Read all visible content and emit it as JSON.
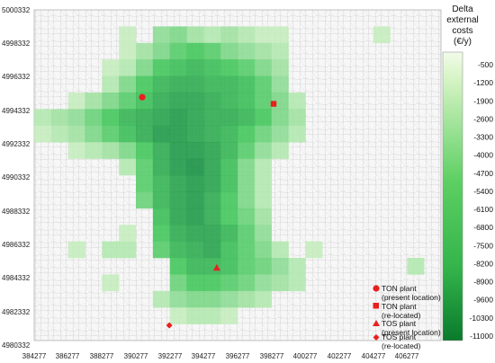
{
  "map": {
    "x_ticks": [
      "384277",
      "386277",
      "388277",
      "390277",
      "392277",
      "394277",
      "396277",
      "398277",
      "400277",
      "402277",
      "404277",
      "406277"
    ],
    "y_ticks": [
      "5000332",
      "4998332",
      "4996332",
      "4994332",
      "4992332",
      "4990332",
      "4988332",
      "4986332",
      "4984332",
      "4982332",
      "4980332"
    ],
    "x_range": [
      384277,
      408277
    ],
    "y_range": [
      4980332,
      5000332
    ]
  },
  "colorbar": {
    "title_lines": [
      "Delta",
      "external",
      "costs",
      "(€/y)"
    ],
    "labels": [
      "-500",
      "-1200",
      "-1900",
      "-2600",
      "-3300",
      "-4000",
      "-4700",
      "-5400",
      "-6100",
      "-6800",
      "-7500",
      "-8200",
      "-8900",
      "-9600",
      "-10300",
      "-11000"
    ],
    "color_top": "#f2fbe9",
    "color_mid": "#33c24a",
    "color_bottom": "#0a7a2c"
  },
  "legend": {
    "items": [
      {
        "marker": "circle",
        "lines": [
          "TON plant",
          "(present location)"
        ]
      },
      {
        "marker": "square",
        "lines": [
          "TON plant",
          "(re-located)"
        ]
      },
      {
        "marker": "triangle",
        "lines": [
          "TOS plant",
          "(present location)"
        ]
      },
      {
        "marker": "diamond",
        "lines": [
          "TOS plant",
          "(re-located)"
        ]
      }
    ],
    "marker_color": "#e8201e"
  },
  "plants": [
    {
      "marker": "circle",
      "x": 390650,
      "y": 4995050
    },
    {
      "marker": "square",
      "x": 398400,
      "y": 4994650
    },
    {
      "marker": "triangle",
      "x": 395050,
      "y": 4984750
    },
    {
      "marker": "diamond",
      "x": 392250,
      "y": 4981250
    }
  ],
  "heat_cells": [
    [
      391277,
      4998332,
      5
    ],
    [
      392277,
      4998332,
      6
    ],
    [
      393277,
      4998332,
      4
    ],
    [
      394277,
      4998332,
      3
    ],
    [
      395277,
      4998332,
      4
    ],
    [
      396277,
      4998332,
      3
    ],
    [
      397277,
      4998332,
      2
    ],
    [
      398277,
      4998332,
      2
    ],
    [
      389277,
      4998332,
      2
    ],
    [
      390277,
      4997332,
      4
    ],
    [
      391277,
      4997332,
      6
    ],
    [
      392277,
      4997332,
      8
    ],
    [
      393277,
      4997332,
      9
    ],
    [
      394277,
      4997332,
      8
    ],
    [
      395277,
      4997332,
      6
    ],
    [
      396277,
      4997332,
      5
    ],
    [
      397277,
      4997332,
      4
    ],
    [
      398277,
      4997332,
      3
    ],
    [
      389277,
      4997332,
      2
    ],
    [
      389277,
      4996332,
      3
    ],
    [
      390277,
      4996332,
      6
    ],
    [
      391277,
      4996332,
      9
    ],
    [
      392277,
      4996332,
      10
    ],
    [
      393277,
      4996332,
      11
    ],
    [
      394277,
      4996332,
      10
    ],
    [
      395277,
      4996332,
      9
    ],
    [
      396277,
      4996332,
      8
    ],
    [
      397277,
      4996332,
      6
    ],
    [
      398277,
      4996332,
      4
    ],
    [
      388277,
      4996332,
      2
    ],
    [
      388277,
      4995332,
      3
    ],
    [
      389277,
      4995332,
      6
    ],
    [
      390277,
      4995332,
      9
    ],
    [
      391277,
      4995332,
      11
    ],
    [
      392277,
      4995332,
      12
    ],
    [
      393277,
      4995332,
      12
    ],
    [
      394277,
      4995332,
      11
    ],
    [
      395277,
      4995332,
      11
    ],
    [
      396277,
      4995332,
      10
    ],
    [
      397277,
      4995332,
      8
    ],
    [
      398277,
      4995332,
      5
    ],
    [
      386277,
      4994332,
      2
    ],
    [
      387277,
      4994332,
      4
    ],
    [
      388277,
      4994332,
      6
    ],
    [
      389277,
      4994332,
      8
    ],
    [
      390277,
      4994332,
      10
    ],
    [
      391277,
      4994332,
      12
    ],
    [
      392277,
      4994332,
      13
    ],
    [
      393277,
      4994332,
      13
    ],
    [
      394277,
      4994332,
      12
    ],
    [
      395277,
      4994332,
      11
    ],
    [
      396277,
      4994332,
      10
    ],
    [
      397277,
      4994332,
      8
    ],
    [
      398277,
      4994332,
      6
    ],
    [
      399277,
      4994332,
      3
    ],
    [
      384277,
      4993332,
      3
    ],
    [
      385277,
      4993332,
      4
    ],
    [
      386277,
      4993332,
      5
    ],
    [
      387277,
      4993332,
      7
    ],
    [
      388277,
      4993332,
      9
    ],
    [
      389277,
      4993332,
      11
    ],
    [
      390277,
      4993332,
      12
    ],
    [
      391277,
      4993332,
      13
    ],
    [
      392277,
      4993332,
      14
    ],
    [
      393277,
      4993332,
      13
    ],
    [
      394277,
      4993332,
      12
    ],
    [
      395277,
      4993332,
      12
    ],
    [
      396277,
      4993332,
      11
    ],
    [
      397277,
      4993332,
      9
    ],
    [
      398277,
      4993332,
      6
    ],
    [
      399277,
      4993332,
      4
    ],
    [
      384277,
      4992332,
      2
    ],
    [
      385277,
      4992332,
      3
    ],
    [
      386277,
      4992332,
      4
    ],
    [
      387277,
      4992332,
      6
    ],
    [
      388277,
      4992332,
      8
    ],
    [
      389277,
      4992332,
      10
    ],
    [
      390277,
      4992332,
      12
    ],
    [
      391277,
      4992332,
      14
    ],
    [
      392277,
      4992332,
      14
    ],
    [
      393277,
      4992332,
      13
    ],
    [
      394277,
      4992332,
      12
    ],
    [
      395277,
      4992332,
      11
    ],
    [
      396277,
      4992332,
      9
    ],
    [
      397277,
      4992332,
      7
    ],
    [
      398277,
      4992332,
      5
    ],
    [
      399277,
      4992332,
      3
    ],
    [
      386277,
      4991332,
      2
    ],
    [
      387277,
      4991332,
      3
    ],
    [
      388277,
      4991332,
      4
    ],
    [
      389277,
      4991332,
      6
    ],
    [
      390277,
      4991332,
      9
    ],
    [
      391277,
      4991332,
      12
    ],
    [
      392277,
      4991332,
      14
    ],
    [
      393277,
      4991332,
      14
    ],
    [
      394277,
      4991332,
      13
    ],
    [
      395277,
      4991332,
      11
    ],
    [
      396277,
      4991332,
      8
    ],
    [
      397277,
      4991332,
      5
    ],
    [
      398277,
      4991332,
      3
    ],
    [
      389277,
      4990332,
      3
    ],
    [
      390277,
      4990332,
      8
    ],
    [
      391277,
      4990332,
      12
    ],
    [
      392277,
      4990332,
      14
    ],
    [
      393277,
      4990332,
      15
    ],
    [
      394277,
      4990332,
      13
    ],
    [
      395277,
      4990332,
      10
    ],
    [
      396277,
      4990332,
      6
    ],
    [
      397277,
      4990332,
      3
    ],
    [
      390277,
      4989332,
      8
    ],
    [
      391277,
      4989332,
      11
    ],
    [
      392277,
      4989332,
      13
    ],
    [
      393277,
      4989332,
      14
    ],
    [
      394277,
      4989332,
      13
    ],
    [
      395277,
      4989332,
      10
    ],
    [
      396277,
      4989332,
      6
    ],
    [
      397277,
      4989332,
      3
    ],
    [
      390277,
      4988332,
      7
    ],
    [
      391277,
      4988332,
      11
    ],
    [
      392277,
      4988332,
      13
    ],
    [
      393277,
      4988332,
      14
    ],
    [
      394277,
      4988332,
      12
    ],
    [
      395277,
      4988332,
      9
    ],
    [
      396277,
      4988332,
      6
    ],
    [
      397277,
      4988332,
      3
    ],
    [
      391277,
      4987332,
      10
    ],
    [
      392277,
      4987332,
      13
    ],
    [
      393277,
      4987332,
      14
    ],
    [
      394277,
      4987332,
      12
    ],
    [
      395277,
      4987332,
      9
    ],
    [
      396277,
      4987332,
      7
    ],
    [
      397277,
      4987332,
      4
    ],
    [
      391277,
      4986332,
      9
    ],
    [
      392277,
      4986332,
      12
    ],
    [
      393277,
      4986332,
      13
    ],
    [
      394277,
      4986332,
      13
    ],
    [
      395277,
      4986332,
      11
    ],
    [
      396277,
      4986332,
      8
    ],
    [
      397277,
      4986332,
      5
    ],
    [
      391277,
      4985332,
      8
    ],
    [
      392277,
      4985332,
      11
    ],
    [
      393277,
      4985332,
      12
    ],
    [
      394277,
      4985332,
      13
    ],
    [
      395277,
      4985332,
      10
    ],
    [
      396277,
      4985332,
      8
    ],
    [
      397277,
      4985332,
      6
    ],
    [
      398277,
      4985332,
      3
    ],
    [
      392277,
      4984332,
      9
    ],
    [
      393277,
      4984332,
      11
    ],
    [
      394277,
      4984332,
      11
    ],
    [
      395277,
      4984332,
      10
    ],
    [
      396277,
      4984332,
      8
    ],
    [
      397277,
      4984332,
      7
    ],
    [
      398277,
      4984332,
      5
    ],
    [
      399277,
      4984332,
      3
    ],
    [
      392277,
      4983332,
      7
    ],
    [
      393277,
      4983332,
      9
    ],
    [
      394277,
      4983332,
      9
    ],
    [
      395277,
      4983332,
      8
    ],
    [
      396277,
      4983332,
      7
    ],
    [
      397277,
      4983332,
      5
    ],
    [
      398277,
      4983332,
      4
    ],
    [
      399277,
      4983332,
      3
    ],
    [
      391277,
      4982332,
      3
    ],
    [
      392277,
      4982332,
      5
    ],
    [
      393277,
      4982332,
      6
    ],
    [
      394277,
      4982332,
      6
    ],
    [
      395277,
      4982332,
      5
    ],
    [
      396277,
      4982332,
      4
    ],
    [
      397277,
      4982332,
      3
    ],
    [
      392277,
      4981332,
      2
    ],
    [
      393277,
      4981332,
      3
    ],
    [
      394277,
      4981332,
      3
    ],
    [
      395277,
      4981332,
      2
    ],
    [
      386277,
      4985332,
      2
    ],
    [
      388277,
      4985332,
      3
    ],
    [
      389277,
      4985332,
      3
    ],
    [
      389277,
      4986332,
      2
    ],
    [
      388277,
      4983332,
      2
    ],
    [
      406277,
      4984332,
      3
    ],
    [
      404277,
      4998332,
      2
    ],
    [
      400277,
      4985332,
      2
    ]
  ]
}
